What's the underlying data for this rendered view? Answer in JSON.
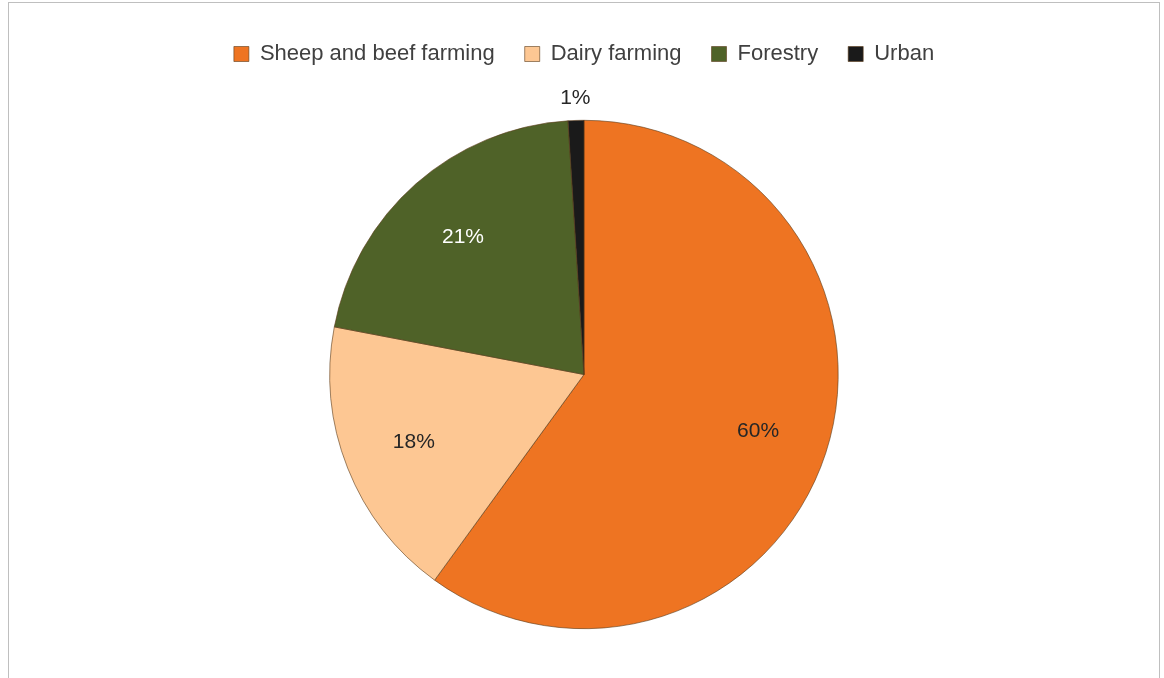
{
  "chart_data": {
    "type": "pie",
    "categories": [
      "Sheep and beef farming",
      "Dairy farming",
      "Forestry",
      "Urban"
    ],
    "values": [
      60,
      18,
      21,
      1
    ],
    "colors": [
      "#ee7422",
      "#fdc793",
      "#4f6228",
      "#1a1a1a"
    ],
    "value_labels": [
      "60%",
      "18%",
      "21%",
      "1%"
    ],
    "legend": "top"
  }
}
